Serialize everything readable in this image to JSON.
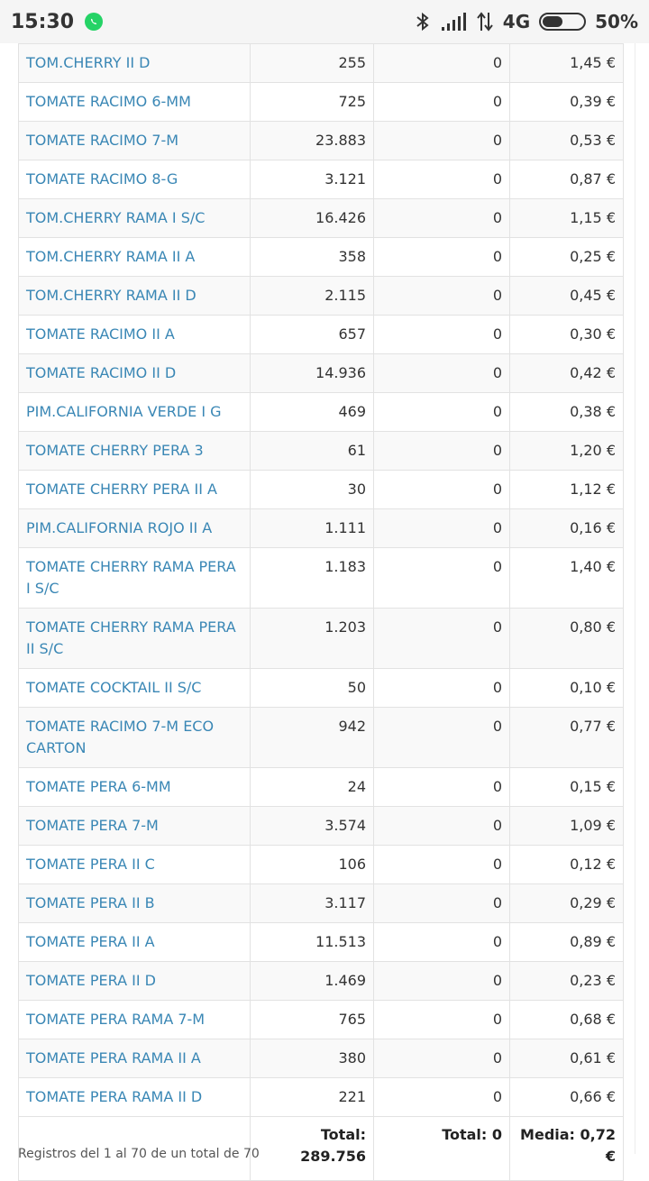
{
  "status_bar": {
    "time": "15:30",
    "network": "4G",
    "battery": "50%",
    "battery_level": 0.5
  },
  "table": {
    "rows": [
      {
        "name": "TOM.CHERRY II D",
        "qty": "255",
        "other": "0",
        "price": "1,45 €"
      },
      {
        "name": "TOMATE RACIMO 6-MM",
        "qty": "725",
        "other": "0",
        "price": "0,39 €"
      },
      {
        "name": "TOMATE RACIMO 7-M",
        "qty": "23.883",
        "other": "0",
        "price": "0,53 €"
      },
      {
        "name": "TOMATE RACIMO 8-G",
        "qty": "3.121",
        "other": "0",
        "price": "0,87 €"
      },
      {
        "name": "TOM.CHERRY RAMA I S/C",
        "qty": "16.426",
        "other": "0",
        "price": "1,15 €"
      },
      {
        "name": "TOM.CHERRY RAMA II A",
        "qty": "358",
        "other": "0",
        "price": "0,25 €"
      },
      {
        "name": "TOM.CHERRY RAMA II D",
        "qty": "2.115",
        "other": "0",
        "price": "0,45 €"
      },
      {
        "name": "TOMATE RACIMO II A",
        "qty": "657",
        "other": "0",
        "price": "0,30 €"
      },
      {
        "name": "TOMATE RACIMO II D",
        "qty": "14.936",
        "other": "0",
        "price": "0,42 €"
      },
      {
        "name": "PIM.CALIFORNIA VERDE I G",
        "qty": "469",
        "other": "0",
        "price": "0,38 €"
      },
      {
        "name": "TOMATE CHERRY PERA 3",
        "qty": "61",
        "other": "0",
        "price": "1,20 €"
      },
      {
        "name": "TOMATE CHERRY PERA II A",
        "qty": "30",
        "other": "0",
        "price": "1,12 €"
      },
      {
        "name": "PIM.CALIFORNIA ROJO II A",
        "qty": "1.111",
        "other": "0",
        "price": "0,16 €"
      },
      {
        "name": "TOMATE CHERRY RAMA PERA I S/C",
        "qty": "1.183",
        "other": "0",
        "price": "1,40 €"
      },
      {
        "name": "TOMATE CHERRY RAMA PERA II S/C",
        "qty": "1.203",
        "other": "0",
        "price": "0,80 €"
      },
      {
        "name": "TOMATE COCKTAIL II S/C",
        "qty": "50",
        "other": "0",
        "price": "0,10 €"
      },
      {
        "name": "TOMATE RACIMO 7-M ECO CARTON",
        "qty": "942",
        "other": "0",
        "price": "0,77 €"
      },
      {
        "name": "TOMATE PERA 6-MM",
        "qty": "24",
        "other": "0",
        "price": "0,15 €"
      },
      {
        "name": "TOMATE PERA 7-M",
        "qty": "3.574",
        "other": "0",
        "price": "1,09 €"
      },
      {
        "name": "TOMATE PERA II C",
        "qty": "106",
        "other": "0",
        "price": "0,12 €"
      },
      {
        "name": "TOMATE PERA II B",
        "qty": "3.117",
        "other": "0",
        "price": "0,29 €"
      },
      {
        "name": "TOMATE PERA II A",
        "qty": "11.513",
        "other": "0",
        "price": "0,89 €"
      },
      {
        "name": "TOMATE PERA II D",
        "qty": "1.469",
        "other": "0",
        "price": "0,23 €"
      },
      {
        "name": "TOMATE PERA RAMA 7-M",
        "qty": "765",
        "other": "0",
        "price": "0,68 €"
      },
      {
        "name": "TOMATE PERA RAMA II A",
        "qty": "380",
        "other": "0",
        "price": "0,61 €"
      },
      {
        "name": "TOMATE PERA RAMA II D",
        "qty": "221",
        "other": "0",
        "price": "0,66 €"
      }
    ],
    "totals": {
      "qty": "Total: 289.756",
      "other": "Total: 0",
      "price": "Media: 0,72 €"
    }
  },
  "footer": {
    "text": "Registros del 1 al 70 de un total de 70"
  }
}
